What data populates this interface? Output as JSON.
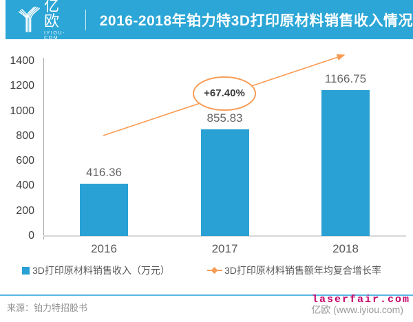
{
  "header": {
    "logo_name": "亿欧",
    "logo_sub": "IYIOU-COM",
    "title": "2016-2018年铂力特3D打印原材料销售收入情况"
  },
  "chart_data": {
    "type": "bar",
    "title": "2016-2018年铂力特3D打印原材料销售收入情况",
    "categories": [
      "2016",
      "2017",
      "2018"
    ],
    "series": [
      {
        "name": "3D打印原材料销售收入（万元）",
        "type": "bar",
        "values": [
          416.36,
          855.83,
          1166.75
        ],
        "color": "#29A1D4"
      },
      {
        "name": "3D打印原材料销售额年均复合增长率",
        "type": "line",
        "annotation": "+67.40%",
        "color": "#F79B54"
      }
    ],
    "value_labels": [
      "416.36",
      "855.83",
      "1166.75"
    ],
    "annotation_label": "+67.40%",
    "xlabel": "",
    "ylabel": "",
    "ylim": [
      0,
      1400
    ],
    "yticks": [
      0,
      200,
      400,
      600,
      800,
      1000,
      1200,
      1400
    ],
    "grid": false,
    "legend_position": "bottom"
  },
  "footer": {
    "source": "来源：铂力特招股书",
    "watermark": "laserfair.com",
    "site_credit": "亿欧 (www.iyiou.com)"
  },
  "colors": {
    "banner": "#2BA6D6",
    "bar": "#29A1D4",
    "trend_line": "#F79B54",
    "footer_rule": "#58B8E4",
    "watermark_text": "#C4006B"
  }
}
